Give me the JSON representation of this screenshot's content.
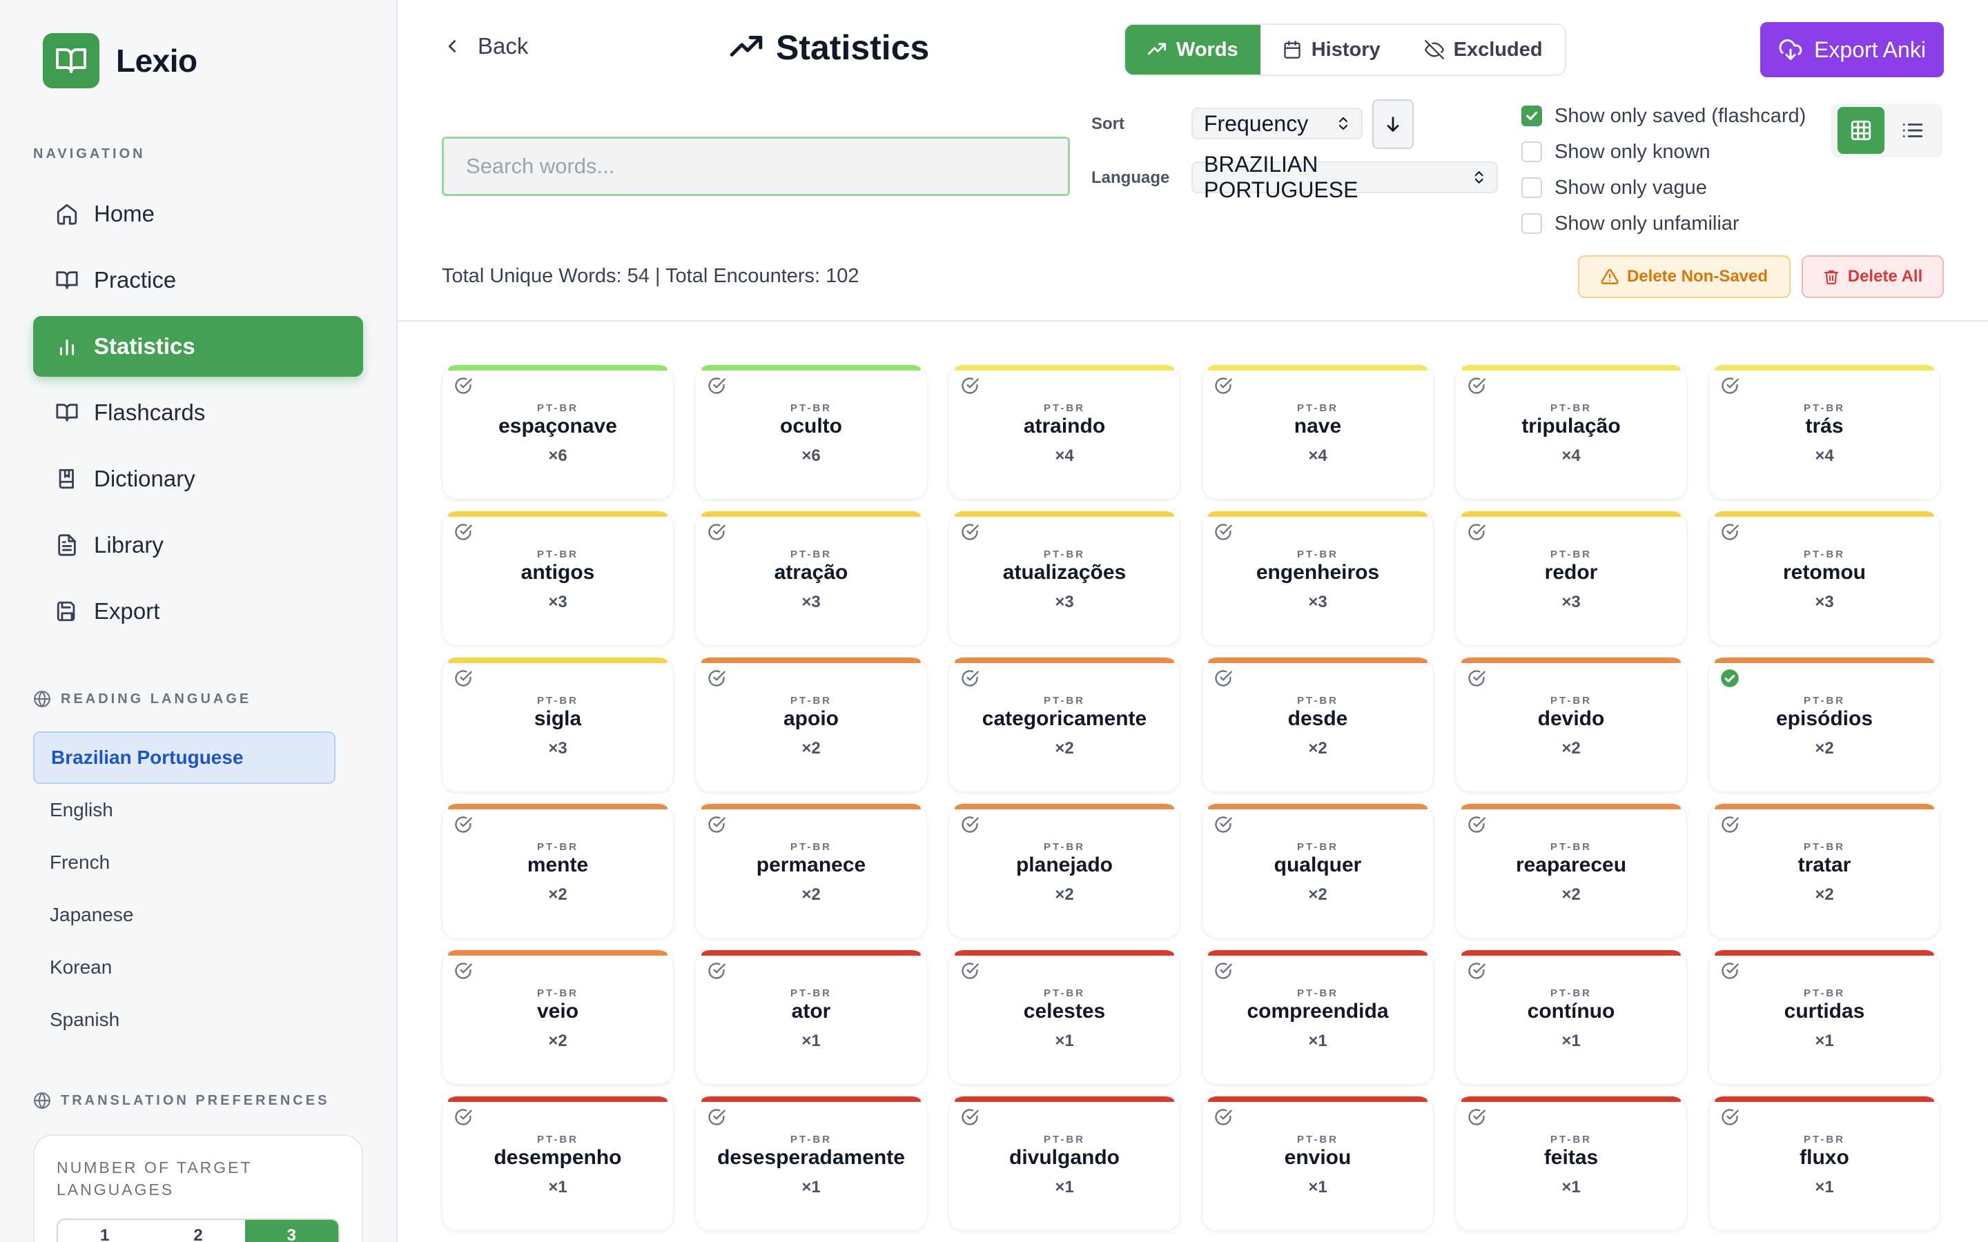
{
  "brand": {
    "name": "Lexio"
  },
  "sidebar": {
    "nav_label": "NAVIGATION",
    "items": [
      {
        "label": "Home",
        "icon": "home-icon"
      },
      {
        "label": "Practice",
        "icon": "book-icon"
      },
      {
        "label": "Statistics",
        "icon": "bar-chart-icon"
      },
      {
        "label": "Flashcards",
        "icon": "book-open-icon"
      },
      {
        "label": "Dictionary",
        "icon": "book-marked-icon"
      },
      {
        "label": "Library",
        "icon": "file-text-icon"
      },
      {
        "label": "Export",
        "icon": "save-icon"
      }
    ],
    "reading_label": "READING LANGUAGE",
    "languages": [
      "Brazilian Portuguese",
      "English",
      "French",
      "Japanese",
      "Korean",
      "Spanish"
    ],
    "translation_label": "TRANSLATION PREFERENCES",
    "target_label": "NUMBER OF TARGET LANGUAGES",
    "target_options": [
      "1",
      "2",
      "3"
    ],
    "target_selected": "3"
  },
  "header": {
    "back_label": "Back",
    "title": "Statistics",
    "tabs": [
      {
        "label": "Words",
        "icon": "trending-up-icon"
      },
      {
        "label": "History",
        "icon": "calendar-icon"
      },
      {
        "label": "Excluded",
        "icon": "eye-off-icon"
      }
    ],
    "active_tab": "Words",
    "export_label": "Export Anki"
  },
  "controls": {
    "search_placeholder": "Search words...",
    "sort_label": "Sort",
    "sort_value": "Frequency",
    "language_label": "Language",
    "language_value": "BRAZILIAN PORTUGUESE",
    "filters": [
      {
        "label": "Show only saved (flashcard)",
        "checked": true
      },
      {
        "label": "Show only known",
        "checked": false
      },
      {
        "label": "Show only vague",
        "checked": false
      },
      {
        "label": "Show only unfamiliar",
        "checked": false
      }
    ]
  },
  "summary": {
    "totals": "Total Unique Words: 54 | Total Encounters: 102",
    "delete_non_saved": "Delete Non-Saved",
    "delete_all": "Delete All"
  },
  "colors": {
    "green": "#8ee56a",
    "yellow": "#f3e65c",
    "gold": "#f5d44a",
    "orange": "#ea8a44",
    "red": "#d63b2c",
    "accent": "#44a153",
    "purple": "#8b3ee8"
  },
  "words": [
    {
      "tag": "PT-BR",
      "word": "espaçonave",
      "count": "×6",
      "bar": "green",
      "saved": false
    },
    {
      "tag": "PT-BR",
      "word": "oculto",
      "count": "×6",
      "bar": "green",
      "saved": false
    },
    {
      "tag": "PT-BR",
      "word": "atraindo",
      "count": "×4",
      "bar": "yellow",
      "saved": false
    },
    {
      "tag": "PT-BR",
      "word": "nave",
      "count": "×4",
      "bar": "yellow",
      "saved": false
    },
    {
      "tag": "PT-BR",
      "word": "tripulação",
      "count": "×4",
      "bar": "yellow",
      "saved": false
    },
    {
      "tag": "PT-BR",
      "word": "trás",
      "count": "×4",
      "bar": "yellow",
      "saved": false
    },
    {
      "tag": "PT-BR",
      "word": "antigos",
      "count": "×3",
      "bar": "gold",
      "saved": false
    },
    {
      "tag": "PT-BR",
      "word": "atração",
      "count": "×3",
      "bar": "gold",
      "saved": false
    },
    {
      "tag": "PT-BR",
      "word": "atualizações",
      "count": "×3",
      "bar": "gold",
      "saved": false
    },
    {
      "tag": "PT-BR",
      "word": "engenheiros",
      "count": "×3",
      "bar": "gold",
      "saved": false
    },
    {
      "tag": "PT-BR",
      "word": "redor",
      "count": "×3",
      "bar": "gold",
      "saved": false
    },
    {
      "tag": "PT-BR",
      "word": "retomou",
      "count": "×3",
      "bar": "gold",
      "saved": false
    },
    {
      "tag": "PT-BR",
      "word": "sigla",
      "count": "×3",
      "bar": "gold",
      "saved": false
    },
    {
      "tag": "PT-BR",
      "word": "apoio",
      "count": "×2",
      "bar": "orange",
      "saved": false
    },
    {
      "tag": "PT-BR",
      "word": "categoricamente",
      "count": "×2",
      "bar": "orange",
      "saved": false
    },
    {
      "tag": "PT-BR",
      "word": "desde",
      "count": "×2",
      "bar": "orange",
      "saved": false
    },
    {
      "tag": "PT-BR",
      "word": "devido",
      "count": "×2",
      "bar": "orange",
      "saved": false
    },
    {
      "tag": "PT-BR",
      "word": "episódios",
      "count": "×2",
      "bar": "orange",
      "saved": true
    },
    {
      "tag": "PT-BR",
      "word": "mente",
      "count": "×2",
      "bar": "orange",
      "saved": false
    },
    {
      "tag": "PT-BR",
      "word": "permanece",
      "count": "×2",
      "bar": "orange",
      "saved": false
    },
    {
      "tag": "PT-BR",
      "word": "planejado",
      "count": "×2",
      "bar": "orange",
      "saved": false
    },
    {
      "tag": "PT-BR",
      "word": "qualquer",
      "count": "×2",
      "bar": "orange",
      "saved": false
    },
    {
      "tag": "PT-BR",
      "word": "reapareceu",
      "count": "×2",
      "bar": "orange",
      "saved": false
    },
    {
      "tag": "PT-BR",
      "word": "tratar",
      "count": "×2",
      "bar": "orange",
      "saved": false
    },
    {
      "tag": "PT-BR",
      "word": "veio",
      "count": "×2",
      "bar": "orange",
      "saved": false
    },
    {
      "tag": "PT-BR",
      "word": "ator",
      "count": "×1",
      "bar": "red",
      "saved": false
    },
    {
      "tag": "PT-BR",
      "word": "celestes",
      "count": "×1",
      "bar": "red",
      "saved": false
    },
    {
      "tag": "PT-BR",
      "word": "compreendida",
      "count": "×1",
      "bar": "red",
      "saved": false
    },
    {
      "tag": "PT-BR",
      "word": "contínuo",
      "count": "×1",
      "bar": "red",
      "saved": false
    },
    {
      "tag": "PT-BR",
      "word": "curtidas",
      "count": "×1",
      "bar": "red",
      "saved": false
    },
    {
      "tag": "PT-BR",
      "word": "desempenho",
      "count": "×1",
      "bar": "red",
      "saved": false
    },
    {
      "tag": "PT-BR",
      "word": "desesperadamente",
      "count": "×1",
      "bar": "red",
      "saved": false
    },
    {
      "tag": "PT-BR",
      "word": "divulgando",
      "count": "×1",
      "bar": "red",
      "saved": false
    },
    {
      "tag": "PT-BR",
      "word": "enviou",
      "count": "×1",
      "bar": "red",
      "saved": false
    },
    {
      "tag": "PT-BR",
      "word": "feitas",
      "count": "×1",
      "bar": "red",
      "saved": false
    },
    {
      "tag": "PT-BR",
      "word": "fluxo",
      "count": "×1",
      "bar": "red",
      "saved": false
    }
  ]
}
